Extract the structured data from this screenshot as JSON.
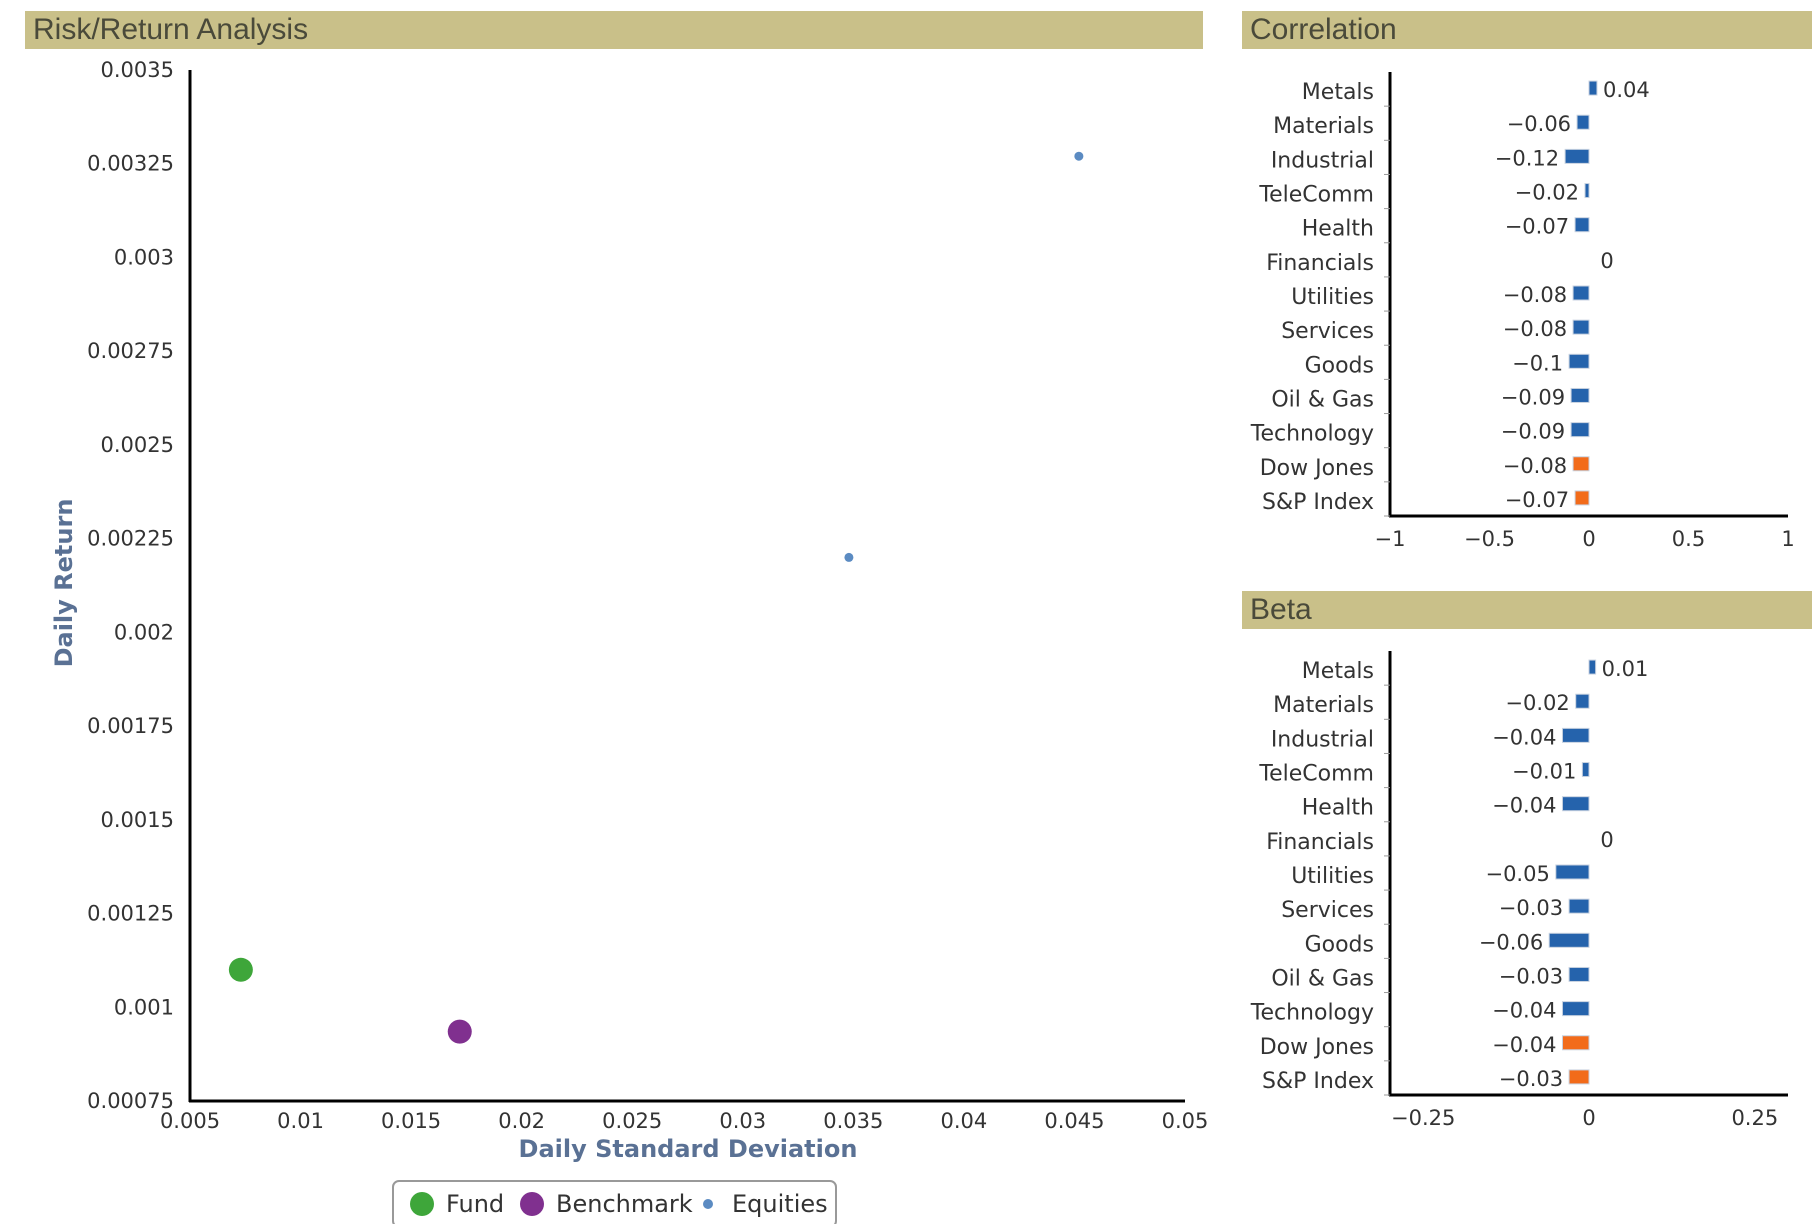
{
  "panels": {
    "risk_return": "Risk/Return Analysis",
    "correlation": "Correlation",
    "beta": "Beta"
  },
  "colors": {
    "header_bg": "#c9c089",
    "fund": "#3ea63a",
    "benchmark": "#80308f",
    "equities": "#5b8bc2",
    "sector_bar": "#2563ac",
    "index_bar": "#f26b1a",
    "axis_title": "#5a7194"
  },
  "legend": {
    "items": [
      {
        "name": "Fund",
        "color": "#3ea63a",
        "size": "large"
      },
      {
        "name": "Benchmark",
        "color": "#80308f",
        "size": "large"
      },
      {
        "name": "Equities",
        "color": "#5b8bc2",
        "size": "small"
      }
    ]
  },
  "chart_data": [
    {
      "type": "scatter",
      "title": "Risk/Return Analysis",
      "xlabel": "Daily Standard Deviation",
      "ylabel": "Daily Return",
      "xlim": [
        0.005,
        0.05
      ],
      "ylim": [
        0.00075,
        0.0035
      ],
      "x_ticks": [
        "0.005",
        "0.01",
        "0.015",
        "0.02",
        "0.025",
        "0.03",
        "0.035",
        "0.04",
        "0.045",
        "0.05"
      ],
      "y_ticks": [
        "0.00075",
        "0.001",
        "0.00125",
        "0.0015",
        "0.00175",
        "0.002",
        "0.00225",
        "0.0025",
        "0.00275",
        "0.003",
        "0.00325",
        "0.0035"
      ],
      "legend_position": "bottom-center",
      "series": [
        {
          "name": "Fund",
          "points": [
            {
              "x": 0.0073,
              "y": 0.0011
            }
          ]
        },
        {
          "name": "Benchmark",
          "points": [
            {
              "x": 0.0172,
              "y": 0.000935
            }
          ]
        },
        {
          "name": "Equities",
          "points": [
            {
              "x": 0.0348,
              "y": 0.0022
            },
            {
              "x": 0.0452,
              "y": 0.00327
            }
          ]
        }
      ]
    },
    {
      "type": "bar",
      "orientation": "horizontal",
      "title": "Correlation",
      "categories": [
        "Metals",
        "Materials",
        "Industrial",
        "TeleComm",
        "Health",
        "Financials",
        "Utilities",
        "Services",
        "Goods",
        "Oil & Gas",
        "Technology",
        "Dow Jones",
        "S&P Index"
      ],
      "values": [
        0.04,
        -0.06,
        -0.12,
        -0.02,
        -0.07,
        0,
        -0.08,
        -0.08,
        -0.1,
        -0.09,
        -0.09,
        -0.08,
        -0.07
      ],
      "value_labels": [
        "0.04",
        "−0.06",
        "−0.12",
        "−0.02",
        "−0.07",
        "0",
        "−0.08",
        "−0.08",
        "−0.1",
        "−0.09",
        "−0.09",
        "−0.08",
        "−0.07"
      ],
      "highlight": [
        false,
        false,
        false,
        false,
        false,
        false,
        false,
        false,
        false,
        false,
        false,
        true,
        true
      ],
      "xlim": [
        -1,
        1
      ],
      "x_ticks": [
        {
          "v": -1,
          "label": "−1"
        },
        {
          "v": -0.5,
          "label": "−0.5"
        },
        {
          "v": 0,
          "label": "0"
        },
        {
          "v": 0.5,
          "label": "0.5"
        },
        {
          "v": 1,
          "label": "1"
        }
      ]
    },
    {
      "type": "bar",
      "orientation": "horizontal",
      "title": "Beta",
      "categories": [
        "Metals",
        "Materials",
        "Industrial",
        "TeleComm",
        "Health",
        "Financials",
        "Utilities",
        "Services",
        "Goods",
        "Oil & Gas",
        "Technology",
        "Dow Jones",
        "S&P Index"
      ],
      "values": [
        0.01,
        -0.02,
        -0.04,
        -0.01,
        -0.04,
        0,
        -0.05,
        -0.03,
        -0.06,
        -0.03,
        -0.04,
        -0.04,
        -0.03
      ],
      "value_labels": [
        "0.01",
        "−0.02",
        "−0.04",
        "−0.01",
        "−0.04",
        "0",
        "−0.05",
        "−0.03",
        "−0.06",
        "−0.03",
        "−0.04",
        "−0.04",
        "−0.03"
      ],
      "highlight": [
        false,
        false,
        false,
        false,
        false,
        false,
        false,
        false,
        false,
        false,
        false,
        true,
        true
      ],
      "xlim": [
        -0.3,
        0.3
      ],
      "x_ticks": [
        {
          "v": -0.25,
          "label": "−0.25"
        },
        {
          "v": 0,
          "label": "0"
        },
        {
          "v": 0.25,
          "label": "0.25"
        }
      ]
    }
  ]
}
